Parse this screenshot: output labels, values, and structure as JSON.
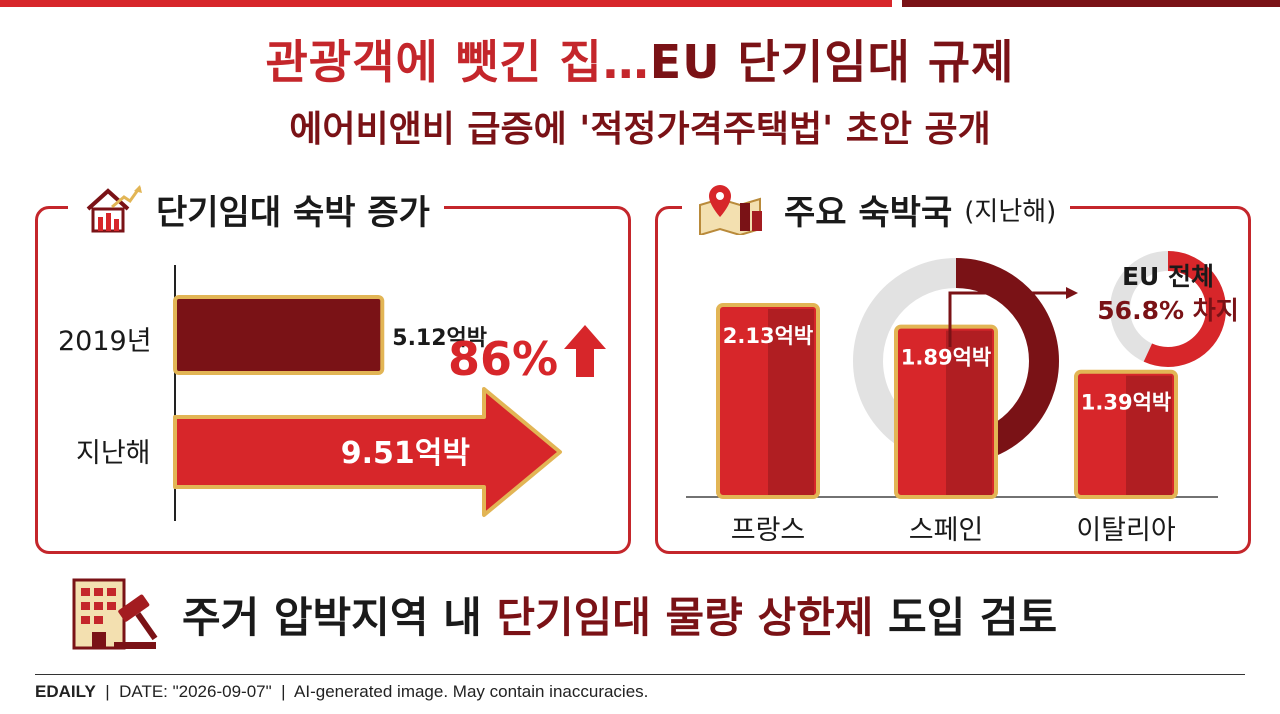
{
  "colors": {
    "red": "#d7262a",
    "dark_red": "#7a1216",
    "gold": "#e2b555",
    "gray": "#e2e2e2"
  },
  "title": {
    "part1": "관광객에 뺏긴 집…",
    "part2": "EU 단기임대 규제"
  },
  "subtitle": "에어비앤비 급증에 '적정가격주택법' 초안 공개",
  "left_panel": {
    "heading": "단기임대 숙박 증가",
    "icon": "house-growth-icon"
  },
  "right_panel": {
    "heading": "주요 숙박국",
    "heading_suffix": "(지난해)",
    "icon": "map-pin-city-icon"
  },
  "chart_data": [
    {
      "type": "bar",
      "orientation": "horizontal",
      "categories": [
        "2019년",
        "지난해"
      ],
      "values": [
        5.12,
        9.51
      ],
      "value_labels": [
        "5.12억박",
        "9.51억박"
      ],
      "unit": "억박",
      "annotation": {
        "text": "86%",
        "arrow": "up"
      }
    },
    {
      "type": "bar",
      "categories": [
        "프랑스",
        "스페인",
        "이탈리아"
      ],
      "values": [
        2.13,
        1.89,
        1.39
      ],
      "value_labels": [
        "2.13억박",
        "1.89억박",
        "1.39억박"
      ],
      "unit": "억박",
      "ring": {
        "share_percent": 56.8
      },
      "callout": {
        "line1": "EU 전체",
        "line2": "56.8% 차지"
      }
    }
  ],
  "bottom": {
    "pre": "주거 압박지역 내 ",
    "highlight": "단기임대 물량 상한제",
    "post": " 도입 검토",
    "icon": "building-gavel-icon"
  },
  "footer": {
    "brand": "EDAILY",
    "date": "DATE: \"2026-09-07\"",
    "note": "AI-generated image. May contain inaccuracies."
  }
}
